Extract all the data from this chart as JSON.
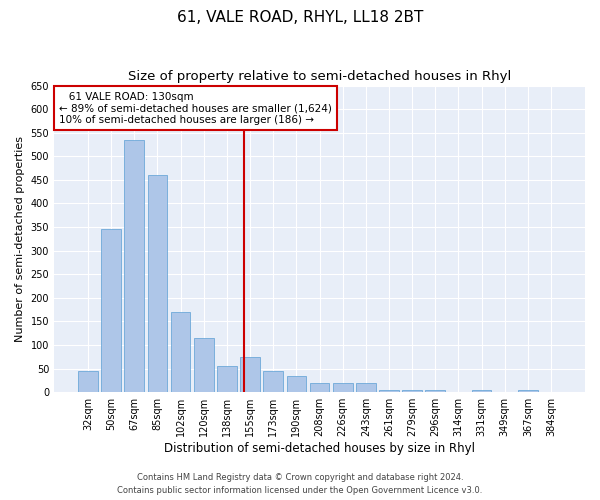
{
  "title": "61, VALE ROAD, RHYL, LL18 2BT",
  "subtitle": "Size of property relative to semi-detached houses in Rhyl",
  "xlabel": "Distribution of semi-detached houses by size in Rhyl",
  "ylabel": "Number of semi-detached properties",
  "categories": [
    "32sqm",
    "50sqm",
    "67sqm",
    "85sqm",
    "102sqm",
    "120sqm",
    "138sqm",
    "155sqm",
    "173sqm",
    "190sqm",
    "208sqm",
    "226sqm",
    "243sqm",
    "261sqm",
    "279sqm",
    "296sqm",
    "314sqm",
    "331sqm",
    "349sqm",
    "367sqm",
    "384sqm"
  ],
  "values": [
    45,
    345,
    535,
    460,
    170,
    115,
    55,
    75,
    45,
    35,
    20,
    20,
    20,
    5,
    5,
    5,
    0,
    5,
    0,
    5,
    0
  ],
  "bar_color": "#aec6e8",
  "bar_edge_color": "#5a9fd4",
  "ylim": [
    0,
    650
  ],
  "yticks": [
    0,
    50,
    100,
    150,
    200,
    250,
    300,
    350,
    400,
    450,
    500,
    550,
    600,
    650
  ],
  "property_line_x": 6.75,
  "property_line_label": "   61 VALE ROAD: 130sqm",
  "annotation_smaller": "← 89% of semi-detached houses are smaller (1,624)",
  "annotation_larger": "10% of semi-detached houses are larger (186) →",
  "red_line_color": "#cc0000",
  "footer1": "Contains HM Land Registry data © Crown copyright and database right 2024.",
  "footer2": "Contains public sector information licensed under the Open Government Licence v3.0.",
  "background_color": "#e8eef8",
  "title_fontsize": 11,
  "subtitle_fontsize": 9.5,
  "ylabel_fontsize": 8,
  "xlabel_fontsize": 8.5,
  "tick_fontsize": 7,
  "annotation_fontsize": 7.5,
  "footer_fontsize": 6
}
